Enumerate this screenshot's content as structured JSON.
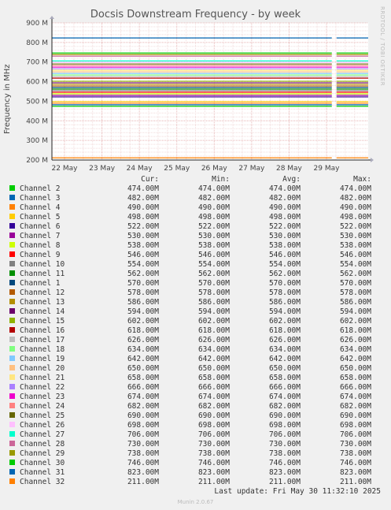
{
  "chart_data": {
    "type": "line",
    "title": "Docsis Downstream Frequency - by week",
    "ylabel": "Frequency in MHz",
    "xlabel": "",
    "ylim": [
      200,
      900
    ],
    "yticks": [
      200,
      300,
      400,
      500,
      600,
      700,
      800,
      900
    ],
    "ytick_labels": [
      "200 M",
      "300 M",
      "400 M",
      "500 M",
      "600 M",
      "700 M",
      "800 M",
      "900 M"
    ],
    "xticks": [
      "22 May",
      "23 May",
      "24 May",
      "25 May",
      "26 May",
      "27 May",
      "28 May",
      "29 May"
    ],
    "grid": true,
    "legend_columns": [
      "Cur:",
      "Min:",
      "Avg:",
      "Max:"
    ],
    "series": [
      {
        "name": "Channel 2",
        "color": "#00cc00",
        "value": 474,
        "cur": "474.00M",
        "min": "474.00M",
        "avg": "474.00M",
        "max": "474.00M"
      },
      {
        "name": "Channel 3",
        "color": "#0066b3",
        "value": 482,
        "cur": "482.00M",
        "min": "482.00M",
        "avg": "482.00M",
        "max": "482.00M"
      },
      {
        "name": "Channel 4",
        "color": "#ff8000",
        "value": 490,
        "cur": "490.00M",
        "min": "490.00M",
        "avg": "490.00M",
        "max": "490.00M"
      },
      {
        "name": "Channel 5",
        "color": "#ffcc00",
        "value": 498,
        "cur": "498.00M",
        "min": "498.00M",
        "avg": "498.00M",
        "max": "498.00M"
      },
      {
        "name": "Channel 6",
        "color": "#330099",
        "value": 522,
        "cur": "522.00M",
        "min": "522.00M",
        "avg": "522.00M",
        "max": "522.00M"
      },
      {
        "name": "Channel 7",
        "color": "#990099",
        "value": 530,
        "cur": "530.00M",
        "min": "530.00M",
        "avg": "530.00M",
        "max": "530.00M"
      },
      {
        "name": "Channel 8",
        "color": "#ccff00",
        "value": 538,
        "cur": "538.00M",
        "min": "538.00M",
        "avg": "538.00M",
        "max": "538.00M"
      },
      {
        "name": "Channel 9",
        "color": "#ff0000",
        "value": 546,
        "cur": "546.00M",
        "min": "546.00M",
        "avg": "546.00M",
        "max": "546.00M"
      },
      {
        "name": "Channel 10",
        "color": "#808080",
        "value": 554,
        "cur": "554.00M",
        "min": "554.00M",
        "avg": "554.00M",
        "max": "554.00M"
      },
      {
        "name": "Channel 11",
        "color": "#008f00",
        "value": 562,
        "cur": "562.00M",
        "min": "562.00M",
        "avg": "562.00M",
        "max": "562.00M"
      },
      {
        "name": "Channel 1",
        "color": "#00487d",
        "value": 570,
        "cur": "570.00M",
        "min": "570.00M",
        "avg": "570.00M",
        "max": "570.00M"
      },
      {
        "name": "Channel 12",
        "color": "#b35a00",
        "value": 578,
        "cur": "578.00M",
        "min": "578.00M",
        "avg": "578.00M",
        "max": "578.00M"
      },
      {
        "name": "Channel 13",
        "color": "#b38f00",
        "value": 586,
        "cur": "586.00M",
        "min": "586.00M",
        "avg": "586.00M",
        "max": "586.00M"
      },
      {
        "name": "Channel 14",
        "color": "#6b006b",
        "value": 594,
        "cur": "594.00M",
        "min": "594.00M",
        "avg": "594.00M",
        "max": "594.00M"
      },
      {
        "name": "Channel 15",
        "color": "#8fb300",
        "value": 602,
        "cur": "602.00M",
        "min": "602.00M",
        "avg": "602.00M",
        "max": "602.00M"
      },
      {
        "name": "Channel 16",
        "color": "#b30000",
        "value": 618,
        "cur": "618.00M",
        "min": "618.00M",
        "avg": "618.00M",
        "max": "618.00M"
      },
      {
        "name": "Channel 17",
        "color": "#bebebe",
        "value": 626,
        "cur": "626.00M",
        "min": "626.00M",
        "avg": "626.00M",
        "max": "626.00M"
      },
      {
        "name": "Channel 18",
        "color": "#80ff80",
        "value": 634,
        "cur": "634.00M",
        "min": "634.00M",
        "avg": "634.00M",
        "max": "634.00M"
      },
      {
        "name": "Channel 19",
        "color": "#80c9ff",
        "value": 642,
        "cur": "642.00M",
        "min": "642.00M",
        "avg": "642.00M",
        "max": "642.00M"
      },
      {
        "name": "Channel 20",
        "color": "#ffc080",
        "value": 650,
        "cur": "650.00M",
        "min": "650.00M",
        "avg": "650.00M",
        "max": "650.00M"
      },
      {
        "name": "Channel 21",
        "color": "#ffe680",
        "value": 658,
        "cur": "658.00M",
        "min": "658.00M",
        "avg": "658.00M",
        "max": "658.00M"
      },
      {
        "name": "Channel 22",
        "color": "#aa80ff",
        "value": 666,
        "cur": "666.00M",
        "min": "666.00M",
        "avg": "666.00M",
        "max": "666.00M"
      },
      {
        "name": "Channel 23",
        "color": "#ee00cc",
        "value": 674,
        "cur": "674.00M",
        "min": "674.00M",
        "avg": "674.00M",
        "max": "674.00M"
      },
      {
        "name": "Channel 24",
        "color": "#ff8080",
        "value": 682,
        "cur": "682.00M",
        "min": "682.00M",
        "avg": "682.00M",
        "max": "682.00M"
      },
      {
        "name": "Channel 25",
        "color": "#666600",
        "value": 690,
        "cur": "690.00M",
        "min": "690.00M",
        "avg": "690.00M",
        "max": "690.00M"
      },
      {
        "name": "Channel 26",
        "color": "#ffbfff",
        "value": 698,
        "cur": "698.00M",
        "min": "698.00M",
        "avg": "698.00M",
        "max": "698.00M"
      },
      {
        "name": "Channel 27",
        "color": "#00ffcc",
        "value": 706,
        "cur": "706.00M",
        "min": "706.00M",
        "avg": "706.00M",
        "max": "706.00M"
      },
      {
        "name": "Channel 28",
        "color": "#cc6699",
        "value": 730,
        "cur": "730.00M",
        "min": "730.00M",
        "avg": "730.00M",
        "max": "730.00M"
      },
      {
        "name": "Channel 29",
        "color": "#999900",
        "value": 738,
        "cur": "738.00M",
        "min": "738.00M",
        "avg": "738.00M",
        "max": "738.00M"
      },
      {
        "name": "Channel 30",
        "color": "#00cc00",
        "value": 746,
        "cur": "746.00M",
        "min": "746.00M",
        "avg": "746.00M",
        "max": "746.00M"
      },
      {
        "name": "Channel 31",
        "color": "#0066b3",
        "value": 823,
        "cur": "823.00M",
        "min": "823.00M",
        "avg": "823.00M",
        "max": "823.00M"
      },
      {
        "name": "Channel 32",
        "color": "#ff8000",
        "value": 211,
        "cur": "211.00M",
        "min": "211.00M",
        "avg": "211.00M",
        "max": "211.00M"
      }
    ]
  },
  "watermark": "RRDTOOL / TOBI OETIKER",
  "footer": {
    "last_update": "Last update: Fri May 30 11:32:10 2025",
    "version": "Munin 2.0.67"
  }
}
